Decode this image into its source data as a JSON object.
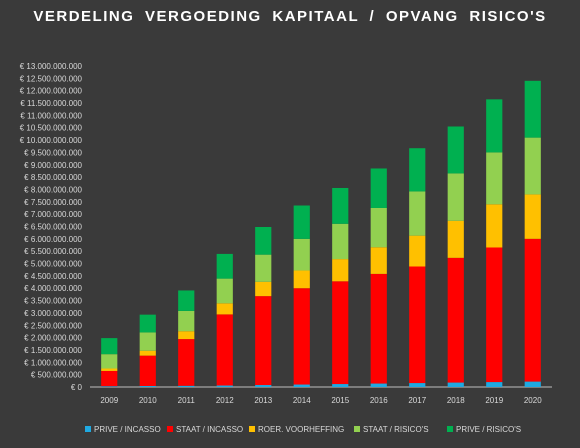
{
  "chart_data": {
    "type": "bar",
    "stacked": true,
    "title": "VERDELING VERGOEDING KAPITAAL / OPVANG RISICO'S",
    "categories": [
      "2009",
      "2010",
      "2011",
      "2012",
      "2013",
      "2014",
      "2015",
      "2016",
      "2017",
      "2018",
      "2019",
      "2020"
    ],
    "y_ticks": [
      "€ 0",
      "€ 500.000.000",
      "€ 1.000.000.000",
      "€ 1.500.000.000",
      "€ 2.000.000.000",
      "€ 2.500.000.000",
      "€ 3.000.000.000",
      "€ 3.500.000.000",
      "€ 4.000.000.000",
      "€ 4.500.000.000",
      "€ 5.000.000.000",
      "€ 5.500.000.000",
      "€ 6.000.000.000",
      "€ 6.500.000.000",
      "€ 7.000.000.000",
      "€ 7.500.000.000",
      "€ 8.000.000.000",
      "€ 8.500.000.000",
      "€ 9.000.000.000",
      "€ 9.500.000.000",
      "€ 10.000.000.000",
      "€ 10.500.000.000",
      "€ 11.000.000.000",
      "€ 11.500.000.000",
      "€ 12.000.000.000",
      "€ 12.500.000.000",
      "€ 13.000.000.000"
    ],
    "ylim": [
      0,
      13000000000
    ],
    "grid": false,
    "legend_position": "bottom",
    "series": [
      {
        "name": "PRIVE / INCASSO",
        "color": "#1fa9e1",
        "values": [
          30000000,
          40000000,
          50000000,
          60000000,
          80000000,
          100000000,
          120000000,
          140000000,
          160000000,
          180000000,
          200000000,
          220000000
        ]
      },
      {
        "name": "STAAT / INCASSO",
        "color": "#ff0000",
        "values": [
          620000000,
          1230000000,
          1890000000,
          2880000000,
          3600000000,
          3900000000,
          4160000000,
          4440000000,
          4720000000,
          5050000000,
          5450000000,
          5780000000
        ]
      },
      {
        "name": "ROER. VOORHEFFING",
        "color": "#ffc000",
        "values": [
          100000000,
          200000000,
          320000000,
          450000000,
          580000000,
          720000000,
          900000000,
          1080000000,
          1250000000,
          1500000000,
          1750000000,
          1800000000
        ]
      },
      {
        "name": "STAAT / RISICO'S",
        "color": "#92d050",
        "values": [
          580000000,
          740000000,
          820000000,
          1000000000,
          1100000000,
          1280000000,
          1430000000,
          1590000000,
          1790000000,
          1920000000,
          2100000000,
          2300000000
        ]
      },
      {
        "name": "PRIVE / RISICO'S",
        "color": "#00b050",
        "values": [
          650000000,
          720000000,
          830000000,
          1000000000,
          1120000000,
          1350000000,
          1450000000,
          1600000000,
          1750000000,
          1900000000,
          2150000000,
          2300000000
        ]
      }
    ]
  }
}
